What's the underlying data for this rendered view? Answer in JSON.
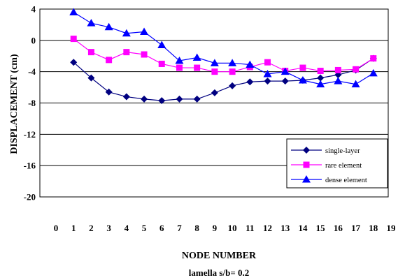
{
  "chart_data": {
    "type": "line",
    "xlabel": "NODE NUMBER",
    "ylabel": "DISPLACEMENT  (cm)",
    "caption": "lamella  s/b= 0.2",
    "xlim": [
      0,
      19
    ],
    "ylim": [
      -20,
      4
    ],
    "x_ticks": [
      "0",
      "1",
      "2",
      "3",
      "4",
      "5",
      "6",
      "7",
      "8",
      "9",
      "10",
      "11",
      "12",
      "13",
      "14",
      "15",
      "16",
      "17",
      "18",
      "19"
    ],
    "y_ticks": [
      "4",
      "0",
      "-4",
      "-8",
      "-12",
      "-16",
      "-20"
    ],
    "grid": "horizontal",
    "legend_position": "bottom-right",
    "x": [
      1,
      2,
      3,
      4,
      5,
      6,
      7,
      8,
      9,
      10,
      11,
      12,
      13,
      14,
      15,
      16,
      17,
      18
    ],
    "series": [
      {
        "name": "single-layer",
        "color": "#000080",
        "marker": "diamond",
        "values": [
          -2.8,
          -4.8,
          -6.6,
          -7.2,
          -7.5,
          -7.7,
          -7.5,
          -7.5,
          -6.7,
          -5.8,
          -5.3,
          -5.2,
          -5.2,
          -5.1,
          -4.8,
          -4.4,
          -3.8,
          -2.3
        ]
      },
      {
        "name": "rare element",
        "color": "#ff00ff",
        "marker": "square",
        "values": [
          0.2,
          -1.5,
          -2.5,
          -1.5,
          -1.8,
          -3.0,
          -3.5,
          -3.5,
          -4.0,
          -4.0,
          -3.4,
          -2.8,
          -3.9,
          -3.5,
          -3.9,
          -3.8,
          -3.7,
          -2.3
        ]
      },
      {
        "name": "dense element",
        "color": "#0000ff",
        "marker": "triangle",
        "values": [
          3.6,
          2.2,
          1.7,
          0.9,
          1.1,
          -0.6,
          -2.6,
          -2.2,
          -2.9,
          -2.9,
          -3.1,
          -4.3,
          -4.0,
          -5.1,
          -5.6,
          -5.2,
          -5.6,
          -4.2
        ]
      }
    ]
  }
}
